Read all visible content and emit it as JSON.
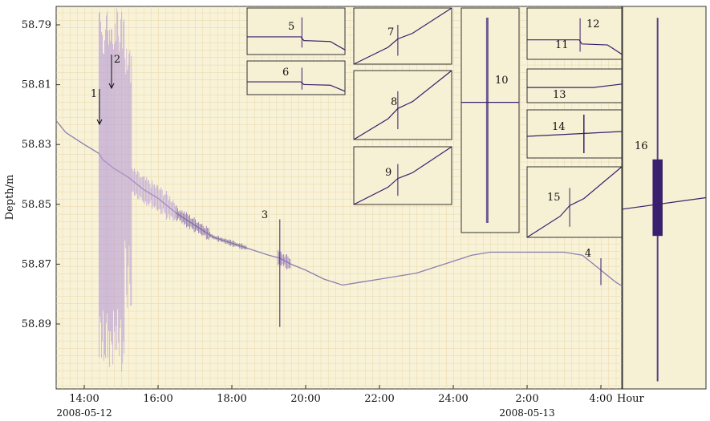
{
  "chart_data": {
    "type": "line",
    "xlabel": "Hour",
    "ylabel": "Depth/m",
    "y_reversed": true,
    "ylim": [
      58.78,
      58.91
    ],
    "y_ticks": [
      "58.79",
      "58.81",
      "58.83",
      "58.85",
      "58.87",
      "58.89"
    ],
    "y_tick_values": [
      58.79,
      58.81,
      58.83,
      58.85,
      58.87,
      58.89
    ],
    "x_ticks": [
      "14:00",
      "16:00",
      "18:00",
      "20:00",
      "22:00",
      "24:00",
      "2:00",
      "4:00"
    ],
    "x_tick_hours": [
      14,
      16,
      18,
      20,
      22,
      24,
      26,
      28
    ],
    "x_dates": [
      {
        "text": "2008-05-12",
        "hour": 14
      },
      {
        "text": "2008-05-13",
        "hour": 26
      }
    ],
    "series": [
      {
        "x": [
          13.0,
          13.5,
          14.0,
          14.4,
          14.5,
          14.8,
          15.2,
          15.6,
          16.0,
          16.5,
          17.0,
          17.5,
          18.0,
          18.5,
          19.0,
          19.3,
          19.6,
          20.0,
          20.5,
          21.0,
          21.5,
          22.0,
          23.0,
          24.0,
          24.5,
          25.0,
          26.0,
          27.0,
          27.5,
          28.0,
          28.4,
          28.8
        ],
        "y": [
          58.822,
          58.826,
          58.83,
          58.833,
          58.835,
          58.838,
          58.841,
          58.845,
          58.848,
          58.853,
          58.857,
          58.861,
          58.863,
          58.865,
          58.867,
          58.868,
          58.87,
          58.872,
          58.875,
          58.877,
          58.876,
          58.875,
          58.873,
          58.869,
          58.867,
          58.866,
          58.866,
          58.866,
          58.867,
          58.872,
          58.876,
          58.879
        ]
      }
    ],
    "annotations": [
      {
        "label": "1",
        "hour": 14.45
      },
      {
        "label": "2",
        "hour": 14.8
      },
      {
        "label": "3",
        "hour": 19.3
      },
      {
        "label": "4",
        "hour": 28.0
      }
    ],
    "insets": [
      "5",
      "6",
      "7",
      "8",
      "9",
      "10",
      "11",
      "12",
      "13",
      "14",
      "15",
      "16"
    ],
    "colors": {
      "paper": "#f8f3d8",
      "grid": "#e9d6a6",
      "trace": "#8a7fb0",
      "trace_dark": "#3a1f6e",
      "oscillation": "#b89cd6"
    }
  }
}
